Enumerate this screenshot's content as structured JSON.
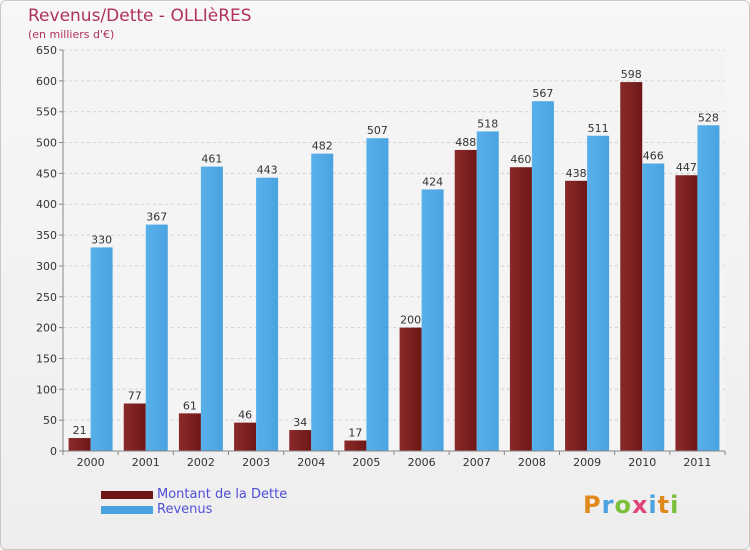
{
  "title": "Revenus/Dette - OLLIèRES",
  "subtitle": "(en milliers d'€)",
  "chart_data": {
    "type": "bar",
    "title": "Revenus/Dette - OLLIèRES",
    "ylabel": "(en milliers d'€)",
    "xlabel": "",
    "ylim": [
      0,
      650
    ],
    "yticks": [
      0,
      50,
      100,
      150,
      200,
      250,
      300,
      350,
      400,
      450,
      500,
      550,
      600,
      650
    ],
    "grid": true,
    "legend_position": "bottom-left",
    "categories": [
      "2000",
      "2001",
      "2002",
      "2003",
      "2004",
      "2005",
      "2006",
      "2007",
      "2008",
      "2009",
      "2010",
      "2011"
    ],
    "series": [
      {
        "name": "Montant de la Dette",
        "color": "#6e1717",
        "values": [
          21,
          77,
          61,
          46,
          34,
          17,
          200,
          488,
          460,
          438,
          598,
          447
        ]
      },
      {
        "name": "Revenus",
        "color": "#4aa3e0",
        "values": [
          330,
          367,
          461,
          443,
          482,
          507,
          424,
          518,
          567,
          511,
          466,
          528
        ]
      }
    ]
  },
  "legend": {
    "debt_label": "Montant de la Dette",
    "revenue_label": "Revenus",
    "debt_color": "#6e1717",
    "revenue_color": "#4aa3e0"
  },
  "logo": {
    "letters": [
      "P",
      "r",
      "o",
      "x",
      "i",
      "t",
      "i"
    ]
  }
}
